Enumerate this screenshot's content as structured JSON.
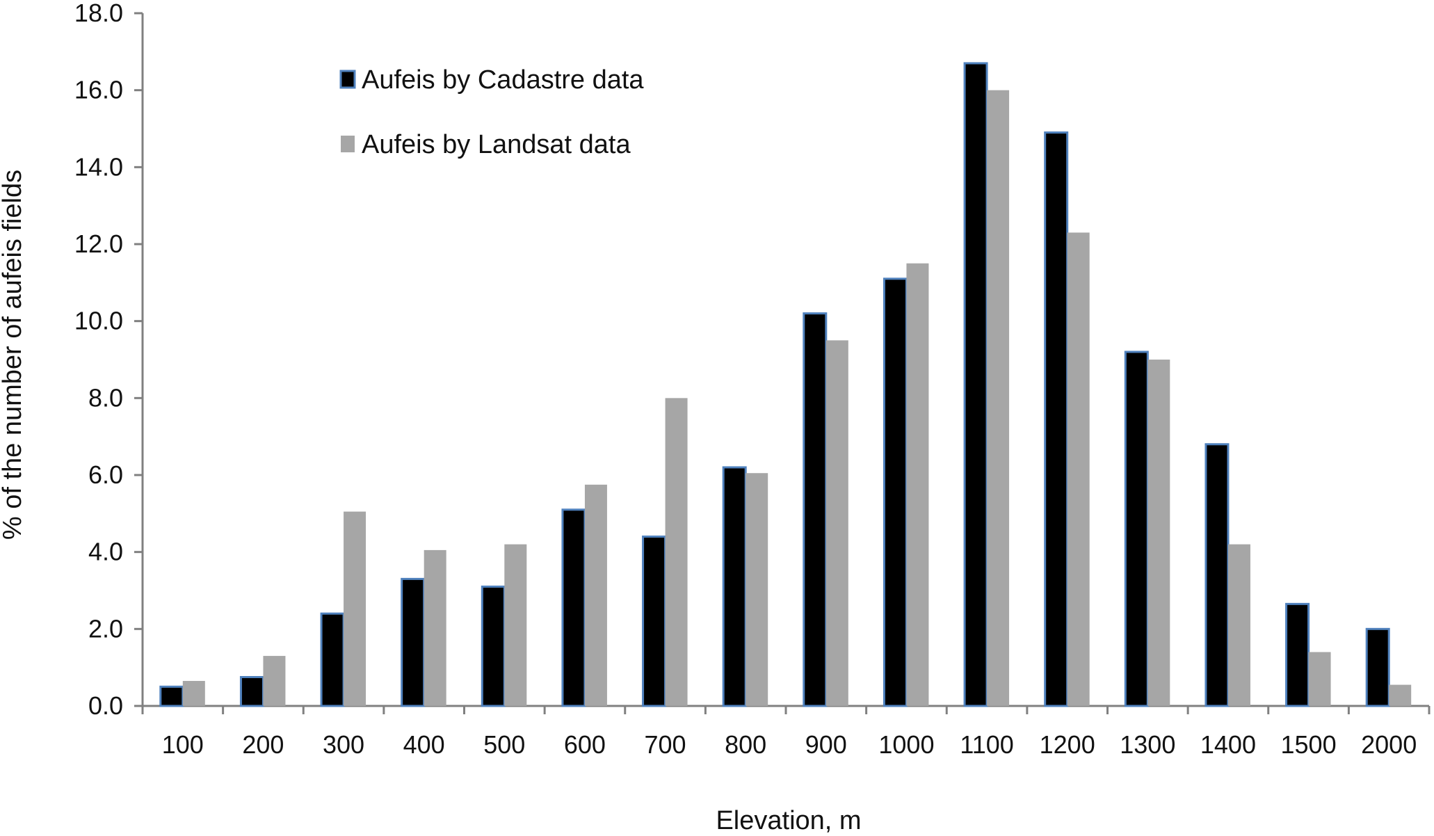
{
  "chart_data": {
    "type": "bar",
    "title": "",
    "xlabel": "Elevation, m",
    "ylabel": "% of the number of aufeis fields",
    "ylim": [
      0,
      18
    ],
    "ytick_step": 2,
    "ytick_labels": [
      "0.0",
      "2.0",
      "4.0",
      "6.0",
      "8.0",
      "10.0",
      "12.0",
      "14.0",
      "16.0",
      "18.0"
    ],
    "categories": [
      "100",
      "200",
      "300",
      "400",
      "500",
      "600",
      "700",
      "800",
      "900",
      "1000",
      "1100",
      "1200",
      "1300",
      "1400",
      "1500",
      "2000"
    ],
    "series": [
      {
        "name": "Aufeis by Cadastre data",
        "color": "#000000",
        "edge_color": "#4f81bd",
        "values": [
          0.5,
          0.75,
          2.4,
          3.3,
          3.1,
          5.1,
          4.4,
          6.2,
          10.2,
          11.1,
          16.7,
          14.9,
          9.2,
          6.8,
          2.65,
          2.0
        ]
      },
      {
        "name": "Aufeis by Landsat data",
        "color": "#a6a6a6",
        "edge_color": "#a6a6a6",
        "values": [
          0.65,
          1.3,
          5.05,
          4.05,
          4.2,
          5.75,
          8.0,
          6.05,
          9.5,
          11.5,
          16.0,
          12.3,
          9.0,
          4.2,
          1.4,
          0.55
        ]
      }
    ],
    "legend_position": "top-left",
    "grid": false
  }
}
